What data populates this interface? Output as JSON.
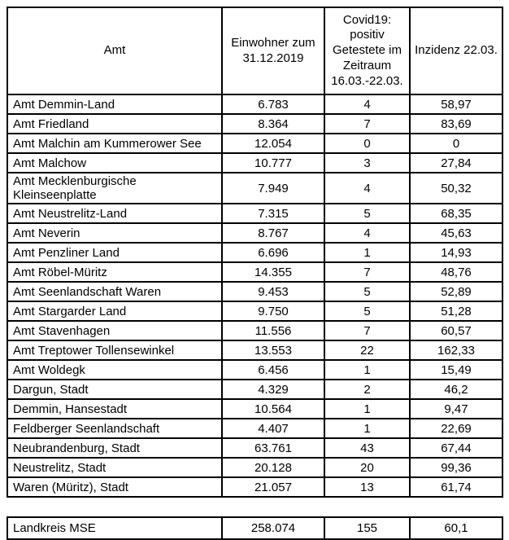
{
  "table": {
    "headers": [
      "Amt",
      "Einwohner zum 31.12.2019",
      "Covid19: positiv Getestete im Zeitraum 16.03.-22.03.",
      "Inzidenz 22.03."
    ],
    "rows": [
      {
        "amt": "Amt Demmin-Land",
        "einwohner": "6.783",
        "getestete": "4",
        "inzidenz": "58,97"
      },
      {
        "amt": "Amt Friedland",
        "einwohner": "8.364",
        "getestete": "7",
        "inzidenz": "83,69"
      },
      {
        "amt": "Amt Malchin am Kummerower See",
        "einwohner": "12.054",
        "getestete": "0",
        "inzidenz": "0"
      },
      {
        "amt": "Amt Malchow",
        "einwohner": "10.777",
        "getestete": "3",
        "inzidenz": "27,84"
      },
      {
        "amt": "Amt Mecklenburgische Kleinseenplatte",
        "einwohner": "7.949",
        "getestete": "4",
        "inzidenz": "50,32"
      },
      {
        "amt": "Amt Neustrelitz-Land",
        "einwohner": "7.315",
        "getestete": "5",
        "inzidenz": "68,35"
      },
      {
        "amt": "Amt Neverin",
        "einwohner": "8.767",
        "getestete": "4",
        "inzidenz": "45,63"
      },
      {
        "amt": "Amt Penzliner Land",
        "einwohner": "6.696",
        "getestete": "1",
        "inzidenz": "14,93"
      },
      {
        "amt": "Amt Röbel-Müritz",
        "einwohner": "14.355",
        "getestete": "7",
        "inzidenz": "48,76"
      },
      {
        "amt": "Amt Seenlandschaft Waren",
        "einwohner": "9.453",
        "getestete": "5",
        "inzidenz": "52,89"
      },
      {
        "amt": "Amt Stargarder Land",
        "einwohner": "9.750",
        "getestete": "5",
        "inzidenz": "51,28"
      },
      {
        "amt": "Amt Stavenhagen",
        "einwohner": "11.556",
        "getestete": "7",
        "inzidenz": "60,57"
      },
      {
        "amt": "Amt Treptower Tollensewinkel",
        "einwohner": "13.553",
        "getestete": "22",
        "inzidenz": "162,33"
      },
      {
        "amt": "Amt Woldegk",
        "einwohner": "6.456",
        "getestete": "1",
        "inzidenz": "15,49"
      },
      {
        "amt": "Dargun, Stadt",
        "einwohner": "4.329",
        "getestete": "2",
        "inzidenz": "46,2"
      },
      {
        "amt": "Demmin, Hansestadt",
        "einwohner": "10.564",
        "getestete": "1",
        "inzidenz": "9,47"
      },
      {
        "amt": "Feldberger Seenlandschaft",
        "einwohner": "4.407",
        "getestete": "1",
        "inzidenz": "22,69"
      },
      {
        "amt": "Neubrandenburg, Stadt",
        "einwohner": "63.761",
        "getestete": "43",
        "inzidenz": "67,44"
      },
      {
        "amt": "Neustrelitz, Stadt",
        "einwohner": "20.128",
        "getestete": "20",
        "inzidenz": "99,36"
      },
      {
        "amt": "Waren (Müritz), Stadt",
        "einwohner": "21.057",
        "getestete": "13",
        "inzidenz": "61,74"
      }
    ],
    "summary": {
      "amt": "Landkreis MSE",
      "einwohner": "258.074",
      "getestete": "155",
      "inzidenz": "60,1"
    }
  },
  "colors": {
    "border": "#000000",
    "text": "#000000",
    "background": "#ffffff"
  }
}
